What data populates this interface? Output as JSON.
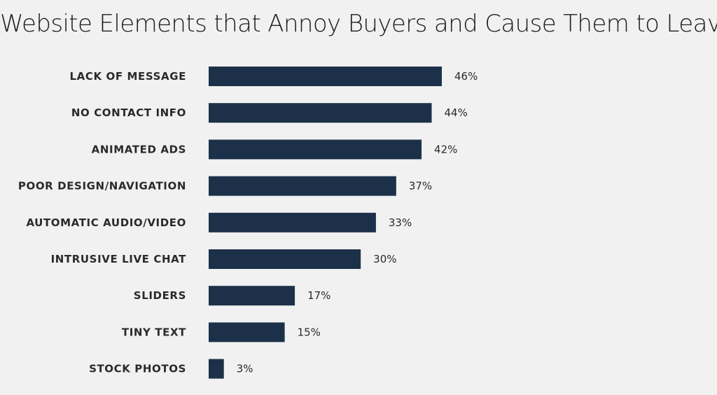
{
  "chart_data": {
    "type": "bar",
    "orientation": "horizontal",
    "title": "Website Elements that Annoy Buyers and Cause Them to Leave",
    "categories": [
      "LACK OF MESSAGE",
      "NO CONTACT INFO",
      "ANIMATED ADS",
      "POOR DESIGN/NAVIGATION",
      "AUTOMATIC AUDIO/VIDEO",
      "INTRUSIVE LIVE CHAT",
      "SLIDERS",
      "TINY TEXT",
      "STOCK PHOTOS"
    ],
    "values": [
      46,
      44,
      42,
      37,
      33,
      30,
      17,
      15,
      3
    ],
    "value_labels": [
      "46%",
      "44%",
      "42%",
      "37%",
      "33%",
      "30%",
      "17%",
      "15%",
      "3%"
    ],
    "xlabel": "",
    "ylabel": "",
    "xlim": [
      0,
      46
    ],
    "grid": false,
    "legend": "none",
    "bar_color": "#1c3149",
    "background_color": "#f1f1f1",
    "text_color": "#2a2a2a"
  }
}
